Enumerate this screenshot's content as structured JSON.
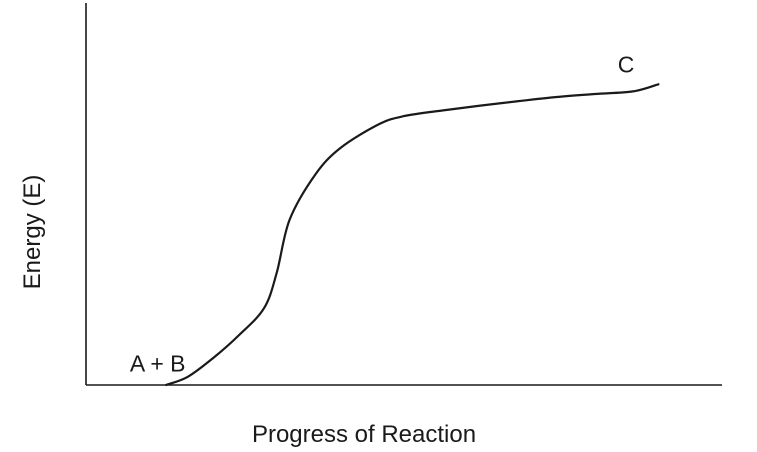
{
  "chart_data": {
    "type": "line",
    "title": "",
    "xlabel": "Progress of Reaction",
    "ylabel": "Energy (E)",
    "xlim": [
      0,
      100
    ],
    "ylim": [
      0,
      100
    ],
    "grid": false,
    "legend": "none",
    "series": [
      {
        "x": [
          12.6,
          16,
          20,
          24,
          28,
          30,
          32,
          36,
          40,
          46,
          50,
          56,
          62,
          68,
          74,
          80,
          86,
          90
        ],
        "y": [
          0,
          2.2,
          7.2,
          13.2,
          20.5,
          30,
          44,
          56,
          63.2,
          69.5,
          71.7,
          73.2,
          74.5,
          75.7,
          76.8,
          77.6,
          78.3,
          80.2
        ]
      }
    ],
    "annotations": [
      {
        "text": "A + B",
        "x": 6.9,
        "y": 3.6
      },
      {
        "text": "C",
        "x": 83.6,
        "y": 83.4
      }
    ],
    "colors": {
      "curve": "#1a1a1a",
      "axis": "#1a1a1a",
      "background": "#ffffff"
    }
  }
}
